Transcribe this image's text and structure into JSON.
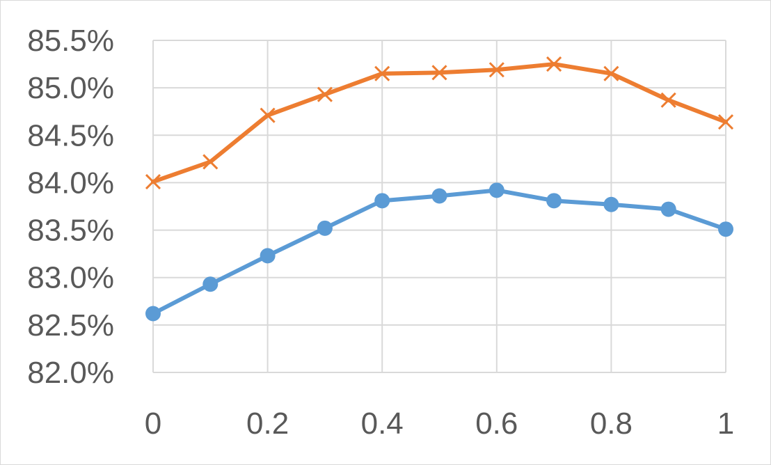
{
  "chart_data": {
    "type": "line",
    "title": "",
    "xlabel": "",
    "ylabel": "",
    "x": [
      0,
      0.1,
      0.2,
      0.3,
      0.4,
      0.5,
      0.6,
      0.7,
      0.8,
      0.9,
      1
    ],
    "xlim": [
      0,
      1
    ],
    "ylim": [
      0.82,
      0.855
    ],
    "x_ticks": [
      "0",
      "0.2",
      "0.4",
      "0.6",
      "0.8",
      "1"
    ],
    "x_tick_values": [
      0,
      0.2,
      0.4,
      0.6,
      0.8,
      1
    ],
    "y_ticks": [
      "82.0%",
      "82.5%",
      "83.0%",
      "83.5%",
      "84.0%",
      "84.5%",
      "85.0%",
      "85.5%"
    ],
    "y_tick_values": [
      0.82,
      0.825,
      0.83,
      0.835,
      0.84,
      0.845,
      0.85,
      0.855
    ],
    "x_gridlines": [
      0.2,
      0.4,
      0.6,
      0.8,
      1
    ],
    "grid": true,
    "legend": "none",
    "series": [
      {
        "values": [
          0.8401,
          0.8422,
          0.8471,
          0.8493,
          0.8515,
          0.8516,
          0.8519,
          0.8525,
          0.8515,
          0.8487,
          0.8464
        ],
        "color": "#ed7d31",
        "marker": "x"
      },
      {
        "values": [
          0.8262,
          0.8293,
          0.8323,
          0.8352,
          0.8381,
          0.8386,
          0.8392,
          0.8381,
          0.8377,
          0.8372,
          0.8351
        ],
        "color": "#5b9bd5",
        "marker": "circle"
      }
    ]
  }
}
